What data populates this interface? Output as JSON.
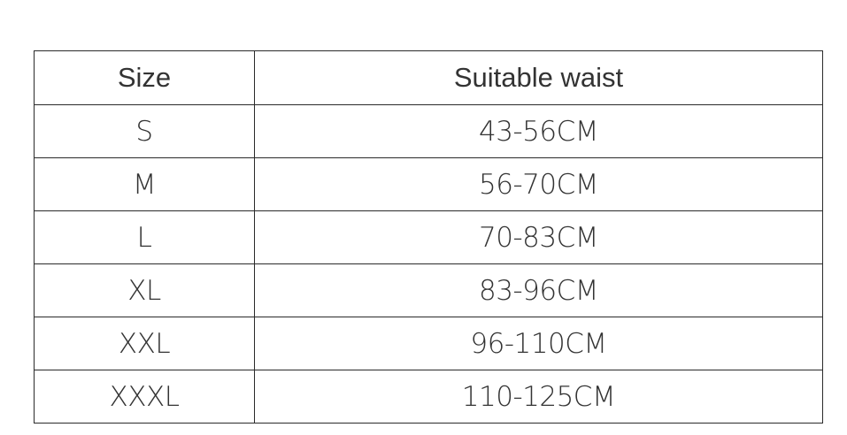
{
  "table": {
    "header": [
      "Size",
      "Suitable waist"
    ],
    "rows": [
      [
        "S",
        "43-56CM"
      ],
      [
        "M",
        "56-70CM"
      ],
      [
        "L",
        "70-83CM"
      ],
      [
        "XL",
        "83-96CM"
      ],
      [
        "XXL",
        "96-110CM"
      ],
      [
        "XXXL",
        "110-125CM"
      ]
    ]
  }
}
